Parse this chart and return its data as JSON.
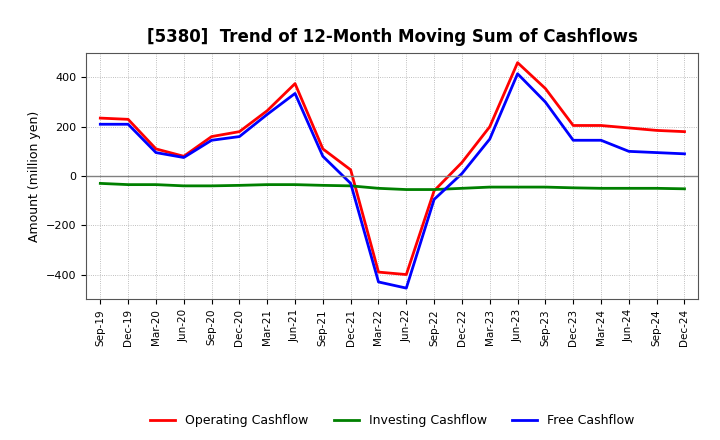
{
  "title": "[5380]  Trend of 12-Month Moving Sum of Cashflows",
  "ylabel": "Amount (million yen)",
  "ylim": [
    -500,
    500
  ],
  "yticks": [
    -400,
    -200,
    0,
    200,
    400
  ],
  "background_color": "#ffffff",
  "plot_bg_color": "#ffffff",
  "grid_color": "#aaaaaa",
  "zero_line_color": "#808080",
  "x_labels": [
    "Sep-19",
    "Dec-19",
    "Mar-20",
    "Jun-20",
    "Sep-20",
    "Dec-20",
    "Mar-21",
    "Jun-21",
    "Sep-21",
    "Dec-21",
    "Mar-22",
    "Jun-22",
    "Sep-22",
    "Dec-22",
    "Mar-23",
    "Jun-23",
    "Sep-23",
    "Dec-23",
    "Mar-24",
    "Jun-24",
    "Sep-24",
    "Dec-24"
  ],
  "operating_cashflow": [
    235,
    230,
    110,
    80,
    160,
    180,
    265,
    375,
    110,
    25,
    -390,
    -400,
    -60,
    55,
    200,
    460,
    355,
    205,
    205,
    195,
    185,
    180
  ],
  "investing_cashflow": [
    -30,
    -35,
    -35,
    -40,
    -40,
    -38,
    -35,
    -35,
    -38,
    -40,
    -50,
    -55,
    -55,
    -50,
    -45,
    -45,
    -45,
    -48,
    -50,
    -50,
    -50,
    -52
  ],
  "free_cashflow": [
    210,
    210,
    95,
    75,
    145,
    160,
    250,
    335,
    80,
    -30,
    -430,
    -455,
    -95,
    10,
    150,
    415,
    300,
    145,
    145,
    100,
    95,
    90
  ],
  "operating_color": "#ff0000",
  "investing_color": "#008000",
  "free_color": "#0000ff",
  "line_width": 2.0,
  "legend_labels": [
    "Operating Cashflow",
    "Investing Cashflow",
    "Free Cashflow"
  ]
}
